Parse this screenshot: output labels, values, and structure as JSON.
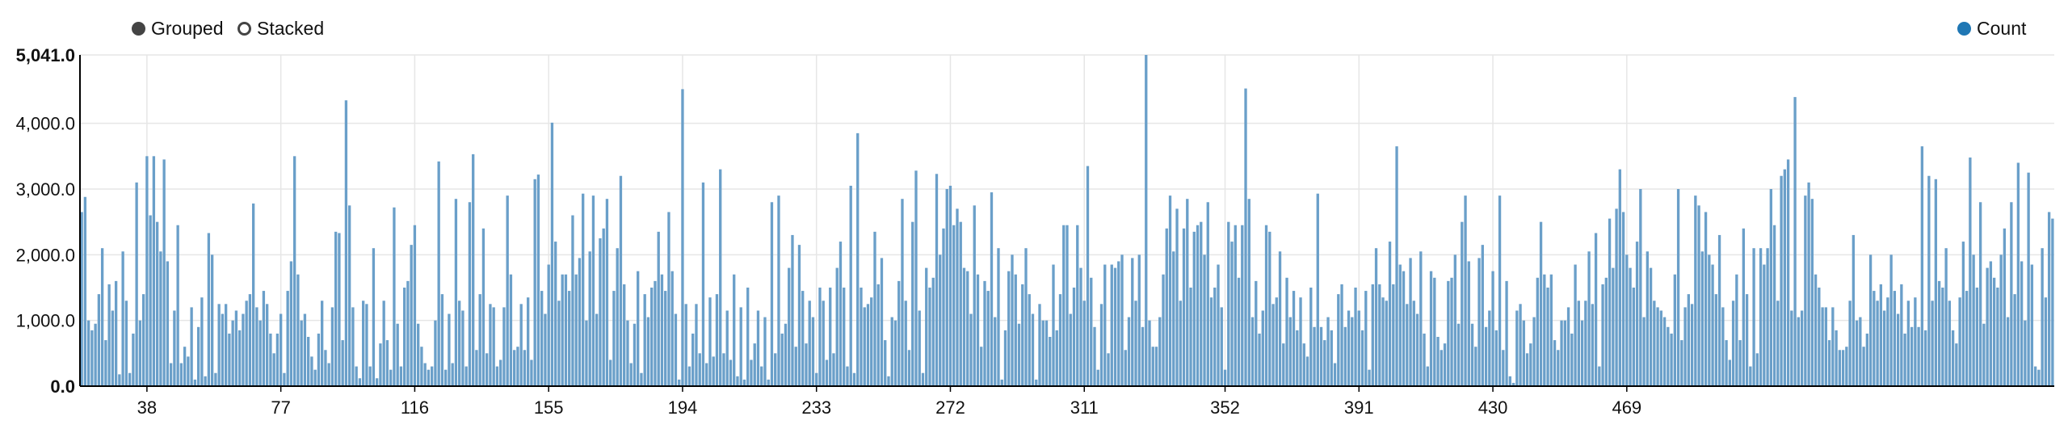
{
  "controls": {
    "grouped_label": "Grouped",
    "stacked_label": "Stacked",
    "selected": "Grouped"
  },
  "legend": {
    "series_label": "Count",
    "series_color": "#1f77b4"
  },
  "colors": {
    "bar": "#6a9fc9",
    "bar_stroke": "#3b7fb3",
    "grid": "#e6e6e6",
    "axis": "#000000"
  },
  "chart_data": {
    "type": "bar",
    "title": "",
    "xlabel": "",
    "ylabel": "",
    "ylim": [
      0,
      5041
    ],
    "y_ticks": [
      "0.0",
      "1,000.0",
      "2,000.0",
      "3,000.0",
      "4,000.0",
      "5,041.0"
    ],
    "x_ticks": [
      38,
      77,
      116,
      155,
      194,
      233,
      272,
      311,
      352,
      391,
      430,
      469
    ],
    "x_start": 19,
    "series": [
      {
        "name": "Count",
        "values": [
          2650,
          2880,
          1000,
          850,
          950,
          1400,
          2100,
          700,
          1550,
          1150,
          1600,
          180,
          2050,
          1300,
          200,
          800,
          3100,
          1000,
          1400,
          3500,
          2600,
          3500,
          2500,
          2050,
          3450,
          1900,
          350,
          1150,
          2450,
          350,
          600,
          450,
          1200,
          100,
          900,
          1350,
          150,
          2330,
          2000,
          200,
          1250,
          1100,
          1250,
          800,
          1000,
          1150,
          850,
          1100,
          1300,
          1400,
          2780,
          1200,
          1000,
          1450,
          1250,
          800,
          500,
          800,
          1100,
          200,
          1450,
          1900,
          3500,
          1700,
          1000,
          1100,
          750,
          450,
          250,
          800,
          1300,
          550,
          350,
          1200,
          2350,
          2330,
          700,
          4350,
          2750,
          1200,
          300,
          120,
          1300,
          1250,
          300,
          2100,
          120,
          650,
          1300,
          700,
          250,
          2720,
          950,
          300,
          1500,
          1600,
          2150,
          2450,
          950,
          600,
          350,
          250,
          300,
          1000,
          3420,
          1400,
          250,
          1100,
          350,
          2850,
          1300,
          1150,
          300,
          2800,
          3530,
          550,
          1400,
          2400,
          500,
          1250,
          1200,
          300,
          400,
          1200,
          2900,
          1700,
          550,
          600,
          1250,
          550,
          1350,
          400,
          3150,
          3220,
          1450,
          1100,
          1850,
          4010,
          2200,
          1300,
          1700,
          1700,
          1450,
          2600,
          1700,
          1950,
          2930,
          1000,
          2050,
          2900,
          1100,
          2250,
          2400,
          2850,
          400,
          1450,
          2100,
          3200,
          1550,
          1000,
          350,
          950,
          1750,
          200,
          1400,
          1050,
          1500,
          1600,
          2350,
          1700,
          1450,
          2650,
          1750,
          1100,
          100,
          4520,
          1250,
          300,
          800,
          1250,
          500,
          3100,
          350,
          1350,
          450,
          1400,
          3300,
          500,
          1150,
          400,
          1700,
          150,
          1200,
          100,
          1500,
          400,
          650,
          1150,
          300,
          1050,
          100,
          2800,
          500,
          2900,
          800,
          950,
          1800,
          2300,
          600,
          2150,
          1450,
          650,
          1300,
          1050,
          200,
          1500,
          1300,
          400,
          1500,
          500,
          1800,
          2200,
          1500,
          300,
          3050,
          200,
          3850,
          1500,
          1200,
          1250,
          1350,
          2350,
          1550,
          1950,
          700,
          150,
          1050,
          1000,
          1600,
          2850,
          1300,
          550,
          2500,
          3280,
          1150,
          200,
          1800,
          1500,
          1650,
          3230,
          2000,
          2400,
          3000,
          3050,
          2450,
          2700,
          2500,
          1800,
          1750,
          1100,
          2750,
          1700,
          600,
          1600,
          1450,
          2950,
          1050,
          2100,
          100,
          850,
          1750,
          2000,
          1700,
          950,
          1550,
          2100,
          1400,
          1100,
          100,
          1250,
          1000,
          1000,
          750,
          1850,
          850,
          1400,
          2450,
          2450,
          1100,
          1500,
          2450,
          1800,
          1300,
          3350,
          1650,
          900,
          250,
          1250,
          1850,
          500,
          1850,
          1800,
          1900,
          2000,
          550,
          1050,
          1950,
          1300,
          2000,
          900,
          5041,
          1000,
          600,
          600,
          1050,
          1700,
          2400,
          2900,
          2050,
          2700,
          1300,
          2400,
          2850,
          1500,
          2350,
          2450,
          2500,
          2000,
          2800,
          1350,
          1500,
          1850,
          1200,
          250,
          2500,
          2200,
          2450,
          1650,
          2450,
          4530,
          2850,
          1050,
          1600,
          800,
          1150,
          2450,
          2350,
          1250,
          1350,
          2050,
          650,
          1650,
          1050,
          1450,
          850,
          1350,
          650,
          450,
          1500,
          900,
          2930,
          900,
          700,
          1050,
          850,
          350,
          1400,
          1550,
          900,
          1150,
          1050,
          1500,
          1150,
          850,
          1450,
          250,
          1550,
          2100,
          1550,
          1350,
          1300,
          2200,
          1550,
          3650,
          1850,
          1750,
          1250,
          1950,
          1300,
          1100,
          2050,
          800,
          300,
          1750,
          1650,
          750,
          550,
          650,
          1600,
          1650,
          2000,
          950,
          2500,
          2900,
          1900,
          950,
          600,
          1950,
          2150,
          900,
          1150,
          1750,
          850,
          2900,
          550,
          1600,
          150,
          50,
          1150,
          1250,
          1000,
          500,
          650,
          1050,
          1650,
          2500,
          1700,
          1500,
          1700,
          700,
          550,
          1000,
          1000,
          1200,
          800,
          1850,
          1300,
          1000,
          1300,
          2050,
          1250,
          2330,
          300,
          1550,
          1650,
          2550,
          1800,
          2700,
          3300,
          2650,
          2000,
          1800,
          1500,
          2200,
          3000,
          1050,
          2050,
          1800,
          1300,
          1200,
          1150,
          1050,
          900,
          800,
          1700,
          3000,
          700,
          1200,
          1400,
          1250,
          2900,
          2750,
          2050,
          2650,
          2000,
          1850,
          1400,
          2300,
          1200,
          700,
          400,
          1300,
          1700,
          700,
          2400,
          1400,
          300,
          2100,
          500,
          2100,
          1850,
          2100,
          3000,
          2450,
          1300,
          3200,
          3300,
          3450,
          1150,
          4400,
          1050,
          1150,
          2900,
          3100,
          2850,
          1700,
          1500,
          1200,
          1200,
          700,
          1200,
          850,
          550,
          550,
          600,
          1300,
          2300,
          1000,
          1050,
          600,
          800,
          2000,
          1450,
          1300,
          1550,
          1150,
          1350,
          2000,
          1450,
          1100,
          1550,
          800,
          1300,
          900,
          1350,
          900,
          3650,
          850,
          3200,
          1300,
          3150,
          1600,
          1500,
          2100,
          1300,
          850,
          650,
          1350,
          2200,
          1450,
          3480,
          2000,
          1500,
          2800,
          950,
          1800,
          1900,
          1650,
          1500,
          2000,
          2400,
          1050,
          2800,
          1400,
          3400,
          1900,
          1000,
          3250,
          1850,
          300,
          250,
          2100,
          1350,
          2650,
          2550
        ]
      }
    ]
  }
}
